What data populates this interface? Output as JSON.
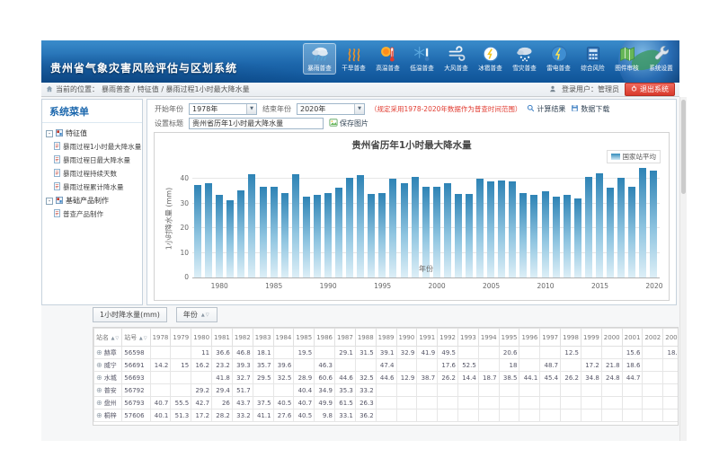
{
  "colors": {
    "header_blue": "#1d67ac",
    "accent": "#1b67ad",
    "bar_top": "#2e83b5",
    "bar_bottom": "#ddeff7",
    "note_red": "#e13b30",
    "logout_red": "#d93a2c"
  },
  "header": {
    "title": "贵州省气象灾害风险评估与区划系统",
    "toolbar": [
      {
        "name": "rainstorm",
        "label": "暴雨普查",
        "active": true
      },
      {
        "name": "drought",
        "label": "干旱普查",
        "active": false
      },
      {
        "name": "high-temp",
        "label": "高温普查",
        "active": false
      },
      {
        "name": "low-temp",
        "label": "低温普查",
        "active": false
      },
      {
        "name": "wind",
        "label": "大风普查",
        "active": false
      },
      {
        "name": "hail",
        "label": "冰雹普查",
        "active": false
      },
      {
        "name": "snow",
        "label": "雪灾普查",
        "active": false
      },
      {
        "name": "lightning",
        "label": "雷电普查",
        "active": false
      },
      {
        "name": "composite-risk",
        "label": "综合风险",
        "active": false
      },
      {
        "name": "map-review",
        "label": "图件审核",
        "active": false
      },
      {
        "name": "system-settings",
        "label": "系统设置",
        "active": false
      }
    ]
  },
  "statusbar": {
    "location_prefix": "当前的位置：",
    "path": "暴雨普查 / 特征值 / 暴雨过程1小时最大降水量",
    "user": "登录用户：管理员",
    "logout": "退出系统"
  },
  "sidebar": {
    "title": "系统菜单",
    "groups": [
      {
        "label": "特征值",
        "children": [
          "暴雨过程1小时最大降水量",
          "暴雨过程日最大降水量",
          "暴雨过程持续天数",
          "暴雨过程累计降水量"
        ]
      },
      {
        "label": "基础产品制作",
        "children": [
          "普查产品制作"
        ]
      }
    ]
  },
  "form": {
    "start_label": "开始年份",
    "start_value": "1978年",
    "end_label": "结束年份",
    "end_value": "2020年",
    "note": "（规定采用1978-2020年数据作为普查时间范围）",
    "calc_label": "计算结果",
    "download_label": "数据下载",
    "title_label": "设置标题",
    "title_value": "贵州省历年1小时最大降水量",
    "save_label": "保存图片"
  },
  "chart_data": {
    "type": "bar",
    "title": "贵州省历年1小时最大降水量",
    "legend": [
      "国家站平均"
    ],
    "legend_position": "top-right",
    "xlabel": "年份",
    "ylabel": "1小时降水量 (mm)",
    "ylim": [
      0,
      46
    ],
    "yticks": [
      0,
      10,
      20,
      30,
      40
    ],
    "xticks": [
      1980,
      1985,
      1990,
      1995,
      2000,
      2005,
      2010,
      2015,
      2020
    ],
    "grid": true,
    "categories": [
      1978,
      1979,
      1980,
      1981,
      1982,
      1983,
      1984,
      1985,
      1986,
      1987,
      1988,
      1989,
      1990,
      1991,
      1992,
      1993,
      1994,
      1995,
      1996,
      1997,
      1998,
      1999,
      2000,
      2001,
      2002,
      2003,
      2004,
      2005,
      2006,
      2007,
      2008,
      2009,
      2010,
      2011,
      2012,
      2013,
      2014,
      2015,
      2016,
      2017,
      2018,
      2019,
      2020
    ],
    "values": [
      37.5,
      38.5,
      33.5,
      31.5,
      35.5,
      42,
      37,
      37,
      34.5,
      42,
      33,
      33.5,
      34.5,
      36.5,
      40.5,
      41.5,
      34,
      34.5,
      40,
      38.5,
      41,
      37,
      37,
      38.5,
      34,
      34,
      40,
      39,
      39.5,
      39,
      34.5,
      33.5,
      35,
      33,
      33.5,
      32,
      41,
      42.5,
      36.5,
      40.5,
      37,
      44.5,
      43.5
    ]
  },
  "table": {
    "measure_chip": "1小时降水量(mm)",
    "column_chip": "年份",
    "station_header": "站名",
    "id_header": "站号",
    "years": [
      1978,
      1979,
      1980,
      1981,
      1982,
      1983,
      1984,
      1985,
      1986,
      1987,
      1988,
      1989,
      1990,
      1991,
      1992,
      1993,
      1994,
      1995,
      1996,
      1997,
      1998,
      1999,
      2000,
      2001,
      2002,
      2003,
      2004,
      2005,
      2006,
      2007,
      2008,
      2009,
      2010,
      2011,
      2012,
      2013,
      2014
    ],
    "rows": [
      {
        "name": "赫章",
        "id": "56598",
        "values": [
          "",
          "",
          "11",
          "36.6",
          "46.8",
          "18.1",
          "",
          "19.5",
          "",
          "29.1",
          "31.5",
          "39.1",
          "32.9",
          "41.9",
          "49.5",
          "",
          "",
          "20.6",
          "",
          "",
          "12.5",
          "",
          "",
          "15.6",
          "",
          "18.1",
          "",
          "34.7",
          "21.9",
          "18.2",
          "44.3",
          "41.5",
          "14.3",
          "45.6",
          "7.8",
          "",
          ""
        ]
      },
      {
        "name": "威宁",
        "id": "56691",
        "values": [
          "14.2",
          "15",
          "16.2",
          "23.2",
          "39.3",
          "35.7",
          "39.6",
          "",
          "46.3",
          "",
          "",
          "47.4",
          "",
          "",
          "17.6",
          "52.5",
          "",
          "18",
          "",
          "48.7",
          "",
          "17.2",
          "21.8",
          "18.6",
          "",
          "",
          "",
          "",
          "",
          "28.8",
          "34",
          "17.8",
          "33.4",
          "31.4",
          "29.5",
          "",
          ""
        ]
      },
      {
        "name": "水城",
        "id": "56693",
        "values": [
          "",
          "",
          "",
          "41.8",
          "32.7",
          "29.5",
          "32.5",
          "28.9",
          "60.6",
          "44.6",
          "32.5",
          "44.6",
          "12.9",
          "38.7",
          "26.2",
          "14.4",
          "18.7",
          "38.5",
          "44.1",
          "45.4",
          "26.2",
          "34.8",
          "24.8",
          "44.7",
          "",
          "",
          "33.4",
          "21.2",
          "24.3",
          "35.4",
          "47",
          "29.2",
          "31.5",
          "45.8",
          "34.3",
          "",
          ""
        ]
      },
      {
        "name": "普安",
        "id": "56792",
        "values": [
          "",
          "",
          "29.2",
          "29.4",
          "51.7",
          "",
          "",
          "40.4",
          "34.9",
          "35.3",
          "33.2",
          "",
          "",
          "",
          "",
          "",
          "",
          "",
          "",
          "",
          "",
          "",
          "",
          "",
          "",
          "",
          "",
          "43",
          "39.1",
          "31.8",
          "35.5",
          "46.2",
          "39.1",
          "31.5",
          "38.6",
          "",
          ""
        ]
      },
      {
        "name": "盘州",
        "id": "56793",
        "values": [
          "40.7",
          "55.5",
          "42.7",
          "26",
          "43.7",
          "37.5",
          "40.5",
          "40.7",
          "49.9",
          "61.5",
          "26.3",
          "",
          "",
          "",
          "",
          "",
          "",
          "",
          "",
          "",
          "",
          "",
          "",
          "",
          "",
          "",
          "",
          "29.6",
          "45",
          "42.2",
          "56.5",
          "28.1",
          "32.5",
          "",
          "30.2",
          "",
          ""
        ]
      },
      {
        "name": "桐梓",
        "id": "57606",
        "values": [
          "40.1",
          "51.3",
          "17.2",
          "28.2",
          "33.2",
          "41.1",
          "27.6",
          "40.5",
          "9.8",
          "33.1",
          "36.2",
          "",
          "",
          "",
          "",
          "",
          "",
          "",
          "",
          "",
          "",
          "",
          "",
          "",
          "",
          "",
          "",
          "17.1",
          "",
          "29.5",
          "17.8",
          "17.4",
          "29.8",
          "39.2",
          "29.3",
          "",
          ""
        ]
      }
    ]
  }
}
